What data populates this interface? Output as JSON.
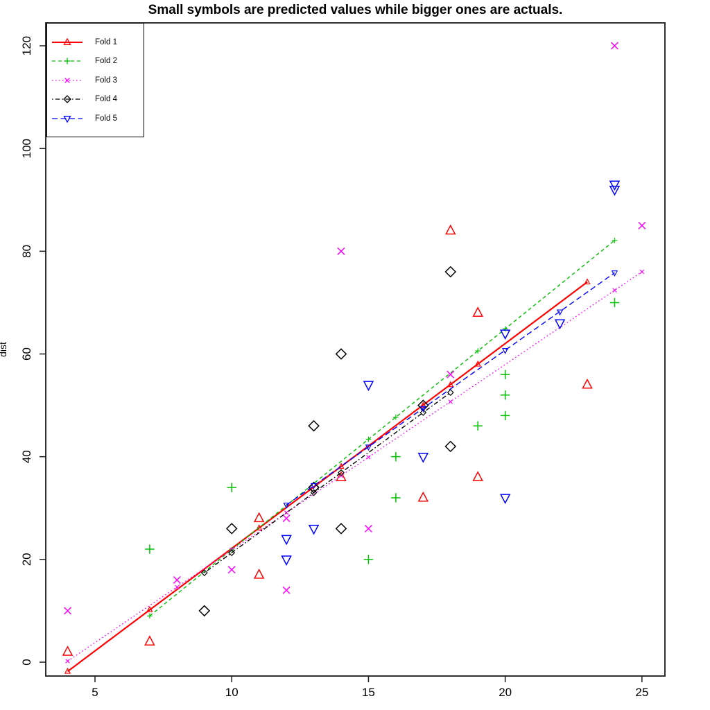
{
  "chart_data": {
    "type": "scatter",
    "title": "Small symbols are predicted values while bigger ones are actuals.",
    "xlabel": "",
    "ylabel": "dist",
    "xlim": [
      3.2,
      25.84
    ],
    "ylim": [
      -2.7,
      124.46
    ],
    "x_ticks": [
      5,
      10,
      15,
      20,
      25
    ],
    "y_ticks": [
      0,
      20,
      40,
      60,
      80,
      100,
      120
    ],
    "grid": false,
    "legend_position": "top-left",
    "axis_color": "#1a1a1a",
    "series": [
      {
        "name": "Fold 1",
        "color": "#ff0000",
        "marker": "triangle-up",
        "line_style": "solid",
        "actuals": [
          [
            4,
            2
          ],
          [
            7,
            4
          ],
          [
            11,
            17
          ],
          [
            11,
            28
          ],
          [
            14,
            36
          ],
          [
            17,
            32
          ],
          [
            18,
            84
          ],
          [
            19,
            36
          ],
          [
            19,
            68
          ],
          [
            23,
            54
          ]
        ],
        "predicted": [
          [
            4,
            -1.8
          ],
          [
            7,
            10.2
          ],
          [
            11,
            26.1
          ],
          [
            14,
            38.1
          ],
          [
            17,
            50.0
          ],
          [
            18,
            54.0
          ],
          [
            19,
            58.0
          ],
          [
            23,
            74.0
          ]
        ],
        "line": [
          [
            4,
            -1.8
          ],
          [
            23,
            74.0
          ]
        ]
      },
      {
        "name": "Fold 2",
        "color": "#00c000",
        "marker": "plus",
        "line_style": "dashed",
        "actuals": [
          [
            7,
            22
          ],
          [
            10,
            34
          ],
          [
            15,
            20
          ],
          [
            16,
            32
          ],
          [
            16,
            40
          ],
          [
            19,
            46
          ],
          [
            20,
            48
          ],
          [
            20,
            52
          ],
          [
            20,
            56
          ],
          [
            24,
            70
          ]
        ],
        "predicted": [
          [
            7,
            9.0
          ],
          [
            10,
            21.9
          ],
          [
            15,
            43.4
          ],
          [
            16,
            47.7
          ],
          [
            19,
            60.6
          ],
          [
            20,
            64.9
          ],
          [
            24,
            82.1
          ]
        ],
        "line": [
          [
            7,
            9.0
          ],
          [
            24,
            82.1
          ]
        ]
      },
      {
        "name": "Fold 3",
        "color": "#ff00ff",
        "marker": "x",
        "line_style": "dotted",
        "actuals": [
          [
            4,
            10
          ],
          [
            8,
            16
          ],
          [
            10,
            18
          ],
          [
            12,
            14
          ],
          [
            12,
            28
          ],
          [
            14,
            80
          ],
          [
            15,
            26
          ],
          [
            18,
            56
          ],
          [
            24,
            120
          ],
          [
            25,
            85
          ]
        ],
        "predicted": [
          [
            4,
            0.2
          ],
          [
            8,
            14.6
          ],
          [
            10,
            21.9
          ],
          [
            12,
            29.1
          ],
          [
            14,
            36.3
          ],
          [
            15,
            39.9
          ],
          [
            18,
            50.7
          ],
          [
            24,
            72.4
          ],
          [
            25,
            76.0
          ]
        ],
        "line": [
          [
            4,
            0.2
          ],
          [
            25,
            76.0
          ]
        ]
      },
      {
        "name": "Fold 4",
        "color": "#000000",
        "marker": "diamond",
        "line_style": "dashdot",
        "actuals": [
          [
            9,
            10
          ],
          [
            10,
            26
          ],
          [
            13,
            34
          ],
          [
            13,
            34
          ],
          [
            13,
            46
          ],
          [
            14,
            26
          ],
          [
            14,
            60
          ],
          [
            17,
            50
          ],
          [
            18,
            42
          ],
          [
            18,
            76
          ]
        ],
        "predicted": [
          [
            9,
            17.4
          ],
          [
            10,
            21.3
          ],
          [
            13,
            33.0
          ],
          [
            14,
            36.9
          ],
          [
            17,
            48.6
          ],
          [
            18,
            52.5
          ]
        ],
        "line": [
          [
            9,
            17.4
          ],
          [
            18,
            52.5
          ]
        ]
      },
      {
        "name": "Fold 5",
        "color": "#0000ff",
        "marker": "triangle-down",
        "line_style": "longdash",
        "actuals": [
          [
            12,
            20
          ],
          [
            12,
            24
          ],
          [
            13,
            26
          ],
          [
            15,
            54
          ],
          [
            17,
            40
          ],
          [
            20,
            32
          ],
          [
            20,
            64
          ],
          [
            22,
            66
          ],
          [
            24,
            92
          ],
          [
            24,
            93
          ]
        ],
        "predicted": [
          [
            12,
            30.6
          ],
          [
            13,
            34.4
          ],
          [
            15,
            41.9
          ],
          [
            17,
            49.4
          ],
          [
            20,
            60.7
          ],
          [
            22,
            68.2
          ],
          [
            24,
            75.8
          ]
        ],
        "line": [
          [
            12,
            30.6
          ],
          [
            24,
            75.8
          ]
        ]
      }
    ]
  }
}
